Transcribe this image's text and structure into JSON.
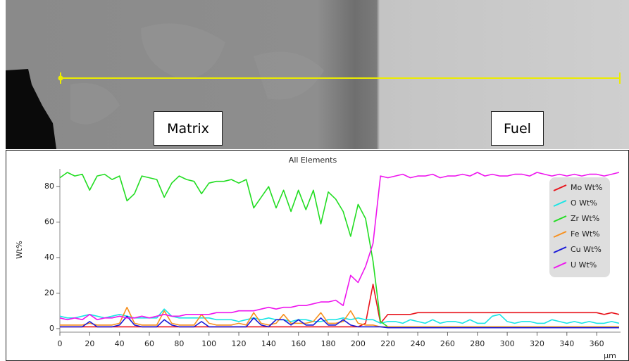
{
  "micrograph": {
    "labels": [
      "Matrix",
      "Fuel"
    ]
  },
  "chart_data": {
    "type": "line",
    "title": "All Elements",
    "ylabel": "Wt%",
    "xlabel": "µm",
    "x": [
      0,
      5,
      10,
      15,
      20,
      25,
      30,
      35,
      40,
      45,
      50,
      55,
      60,
      65,
      70,
      75,
      80,
      85,
      90,
      95,
      100,
      105,
      110,
      115,
      120,
      125,
      130,
      135,
      140,
      145,
      150,
      155,
      160,
      165,
      170,
      175,
      180,
      185,
      190,
      195,
      200,
      205,
      210,
      215,
      220,
      225,
      230,
      235,
      240,
      245,
      250,
      255,
      260,
      265,
      270,
      275,
      280,
      285,
      290,
      295,
      300,
      305,
      310,
      315,
      320,
      325,
      330,
      335,
      340,
      345,
      350,
      355,
      360,
      365,
      370,
      375
    ],
    "xlim": [
      0,
      376
    ],
    "ylim": [
      -2,
      90
    ],
    "xticks": [
      0,
      20,
      40,
      60,
      80,
      100,
      120,
      140,
      160,
      180,
      200,
      220,
      240,
      260,
      280,
      300,
      320,
      340,
      360
    ],
    "yticks": [
      0,
      20,
      40,
      60,
      80
    ],
    "legend": "upper right",
    "series": [
      {
        "name": "Mo Wt%",
        "color": "#e8141c",
        "values": [
          1,
          1,
          1,
          1,
          1,
          1,
          1,
          1,
          1,
          1,
          1,
          1,
          1,
          1,
          1,
          1,
          1,
          1,
          1,
          1,
          1,
          1,
          1,
          1,
          1,
          1,
          1,
          1,
          1,
          1,
          1,
          1,
          1,
          1,
          1,
          1,
          1,
          1,
          1,
          1,
          1,
          3,
          25,
          3,
          8,
          8,
          8,
          8,
          9,
          9,
          9,
          9,
          9,
          9,
          9,
          9,
          9,
          9,
          9,
          9,
          9,
          9,
          9,
          9,
          9,
          9,
          9,
          9,
          9,
          9,
          9,
          9,
          9,
          8,
          9,
          8
        ]
      },
      {
        "name": "O Wt%",
        "color": "#19e5e5",
        "values": [
          7,
          6,
          6,
          7,
          8,
          7,
          6,
          7,
          8,
          7,
          6,
          6,
          6,
          6,
          11,
          7,
          6,
          6,
          6,
          6,
          6,
          5,
          5,
          5,
          4,
          5,
          6,
          5,
          6,
          5,
          5,
          4,
          5,
          5,
          4,
          4,
          5,
          5,
          6,
          5,
          6,
          5,
          5,
          3,
          4,
          4,
          3,
          5,
          4,
          3,
          5,
          3,
          4,
          4,
          3,
          5,
          3,
          3,
          7,
          8,
          4,
          3,
          4,
          4,
          3,
          3,
          5,
          4,
          3,
          4,
          3,
          4,
          3,
          3,
          4,
          3
        ]
      },
      {
        "name": "Zr Wt%",
        "color": "#22dd22",
        "values": [
          85,
          88,
          86,
          87,
          78,
          86,
          87,
          84,
          86,
          72,
          76,
          86,
          85,
          84,
          74,
          82,
          86,
          84,
          83,
          76,
          82,
          83,
          83,
          84,
          82,
          84,
          68,
          74,
          80,
          68,
          78,
          66,
          78,
          67,
          78,
          59,
          77,
          73,
          66,
          52,
          70,
          62,
          38,
          4,
          1,
          1,
          1,
          1,
          1,
          1,
          1,
          1,
          1,
          1,
          1,
          1,
          1,
          1,
          1,
          1,
          1,
          1,
          1,
          1,
          1,
          1,
          1,
          1,
          1,
          1,
          1,
          1,
          1,
          1,
          1,
          1
        ]
      },
      {
        "name": "Fe Wt%",
        "color": "#f7901e",
        "values": [
          2,
          2,
          2,
          2,
          3,
          2,
          2,
          2,
          3,
          12,
          3,
          2,
          2,
          2,
          10,
          3,
          2,
          2,
          2,
          8,
          3,
          2,
          2,
          2,
          3,
          2,
          9,
          3,
          2,
          3,
          8,
          3,
          3,
          3,
          4,
          9,
          3,
          3,
          4,
          10,
          3,
          2,
          2,
          1,
          1,
          1,
          1,
          1,
          1,
          1,
          1,
          1,
          1,
          1,
          1,
          1,
          1,
          1,
          1,
          1,
          1,
          1,
          1,
          1,
          1,
          1,
          1,
          1,
          1,
          1,
          1,
          1,
          1,
          1,
          1,
          1
        ]
      },
      {
        "name": "Cu Wt%",
        "color": "#1a1ad8",
        "values": [
          1,
          1,
          1,
          1,
          4,
          1,
          1,
          1,
          2,
          7,
          2,
          1,
          1,
          1,
          5,
          2,
          1,
          1,
          1,
          4,
          1,
          1,
          1,
          1,
          1,
          1,
          6,
          2,
          1,
          5,
          5,
          2,
          5,
          2,
          2,
          6,
          2,
          2,
          5,
          2,
          1,
          1,
          1,
          1,
          0.5,
          0.5,
          0.5,
          0.5,
          0.5,
          0.5,
          0.5,
          0.5,
          0.5,
          0.5,
          0.5,
          0.5,
          0.5,
          0.5,
          0.5,
          0.5,
          0.5,
          0.5,
          0.5,
          0.5,
          0.5,
          0.5,
          0.5,
          0.5,
          0.5,
          0.5,
          0.5,
          0.5,
          0.5,
          0.5,
          0.5,
          0.5
        ]
      },
      {
        "name": "U Wt%",
        "color": "#ee16ee",
        "values": [
          6,
          5,
          6,
          5,
          8,
          5,
          6,
          6,
          7,
          6,
          6,
          7,
          6,
          7,
          8,
          7,
          7,
          8,
          8,
          8,
          8,
          9,
          9,
          9,
          10,
          10,
          10,
          11,
          12,
          11,
          12,
          12,
          13,
          13,
          14,
          15,
          15,
          16,
          13,
          30,
          26,
          35,
          48,
          86,
          85,
          86,
          87,
          85,
          86,
          86,
          87,
          85,
          86,
          86,
          87,
          86,
          88,
          86,
          87,
          86,
          86,
          87,
          87,
          86,
          88,
          87,
          86,
          87,
          86,
          87,
          86,
          87,
          87,
          86,
          87,
          88
        ]
      }
    ]
  }
}
